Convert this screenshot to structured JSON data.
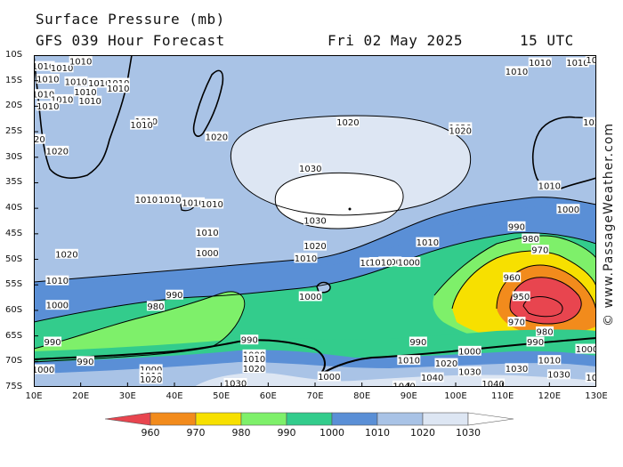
{
  "header": {
    "title": "Surface Pressure (mb)",
    "forecast": "GFS 039 Hour Forecast",
    "date": "Fri 02 May 2025",
    "time": "15 UTC"
  },
  "credit": "© www.PassageWeather.com",
  "map": {
    "lat_labels": [
      "10S",
      "15S",
      "20S",
      "25S",
      "30S",
      "35S",
      "40S",
      "45S",
      "50S",
      "55S",
      "60S",
      "65S",
      "70S",
      "75S"
    ],
    "lon_labels": [
      "10E",
      "20E",
      "30E",
      "40E",
      "50E",
      "60E",
      "70E",
      "80E",
      "90E",
      "100E",
      "110E",
      "120E",
      "130E"
    ],
    "band_colors": {
      "below_960": "#e8454f",
      "960_970": "#f28b1c",
      "970_980": "#f7e000",
      "980_990": "#7ef06a",
      "990_1000": "#33cc8c",
      "1000_1010": "#5a8fd6",
      "1010_1020": "#a9c3e6",
      "1020_1030": "#dde6f3",
      "above_1030": "#ffffff"
    },
    "contour_labels": [
      {
        "text": "1010",
        "lon": 12,
        "lat": -12.2
      },
      {
        "text": "1010",
        "lon": 16,
        "lat": -12.5
      },
      {
        "text": "1010",
        "lon": 20,
        "lat": -11.2
      },
      {
        "text": "1010",
        "lon": 13,
        "lat": -14.7
      },
      {
        "text": "1010",
        "lon": 19,
        "lat": -15.2
      },
      {
        "text": "1010",
        "lon": 24,
        "lat": -15.5
      },
      {
        "text": "1010",
        "lon": 28,
        "lat": -15.5
      },
      {
        "text": "1010",
        "lon": 21,
        "lat": -17.2
      },
      {
        "text": "1010",
        "lon": 28,
        "lat": -16.5
      },
      {
        "text": "1010",
        "lon": 12,
        "lat": -17.7
      },
      {
        "text": "1010",
        "lon": 16,
        "lat": -18.7
      },
      {
        "text": "1010",
        "lon": 22,
        "lat": -19.0
      },
      {
        "text": "1010",
        "lon": 13,
        "lat": -20.0
      },
      {
        "text": "1010",
        "lon": 34,
        "lat": -23.0
      },
      {
        "text": "1010",
        "lon": 33,
        "lat": -23.7
      },
      {
        "text": "1020",
        "lon": 10,
        "lat": -26.5
      },
      {
        "text": "1020",
        "lon": 15,
        "lat": -28.8
      },
      {
        "text": "1020",
        "lon": 49,
        "lat": -26.0
      },
      {
        "text": "1020",
        "lon": 77,
        "lat": -23.2
      },
      {
        "text": "1020",
        "lon": 101,
        "lat": -24.2
      },
      {
        "text": "1020",
        "lon": 101,
        "lat": -24.8
      },
      {
        "text": "102",
        "lon": 129,
        "lat": -23.2
      },
      {
        "text": "1030",
        "lon": 69,
        "lat": -32.2
      },
      {
        "text": "1030",
        "lon": 70,
        "lat": -42.4
      },
      {
        "text": "1020",
        "lon": 70,
        "lat": -47.4
      },
      {
        "text": "1010",
        "lon": 68,
        "lat": -49.8
      },
      {
        "text": "1010",
        "lon": 94,
        "lat": -46.7
      },
      {
        "text": "1010",
        "lon": 34,
        "lat": -38.3
      },
      {
        "text": "1010",
        "lon": 39,
        "lat": -38.3
      },
      {
        "text": "1010",
        "lon": 44,
        "lat": -38.9
      },
      {
        "text": "1010",
        "lon": 48,
        "lat": -39.2
      },
      {
        "text": "1010",
        "lon": 47,
        "lat": -44.8
      },
      {
        "text": "1020",
        "lon": 17,
        "lat": -49.0
      },
      {
        "text": "1010",
        "lon": 15,
        "lat": -54.2
      },
      {
        "text": "1000",
        "lon": 15,
        "lat": -59.0
      },
      {
        "text": "1000",
        "lon": 47,
        "lat": -48.8
      },
      {
        "text": "1000",
        "lon": 69,
        "lat": -57.3
      },
      {
        "text": "1000",
        "lon": 82,
        "lat": -50.7
      },
      {
        "text": "1000",
        "lon": 86,
        "lat": -50.5
      },
      {
        "text": "1000",
        "lon": 90,
        "lat": -50.6
      },
      {
        "text": "1010",
        "lon": 84,
        "lat": -50.6
      },
      {
        "text": "990",
        "lon": 40,
        "lat": -57.0
      },
      {
        "text": "980",
        "lon": 36,
        "lat": -59.2
      },
      {
        "text": "990",
        "lon": 14,
        "lat": -66.2
      },
      {
        "text": "990",
        "lon": 21,
        "lat": -70.0
      },
      {
        "text": "990",
        "lon": 56,
        "lat": -65.8
      },
      {
        "text": "990",
        "lon": 92,
        "lat": -66.2
      },
      {
        "text": "1000",
        "lon": 12,
        "lat": -71.6
      },
      {
        "text": "1000",
        "lon": 35,
        "lat": -71.6
      },
      {
        "text": "1010",
        "lon": 35,
        "lat": -72.8
      },
      {
        "text": "1020",
        "lon": 35,
        "lat": -73.5
      },
      {
        "text": "1000",
        "lon": 57,
        "lat": -68.7
      },
      {
        "text": "1010",
        "lon": 57,
        "lat": -69.5
      },
      {
        "text": "1020",
        "lon": 57,
        "lat": -71.4
      },
      {
        "text": "1030",
        "lon": 53,
        "lat": -74.3
      },
      {
        "text": "1000",
        "lon": 73,
        "lat": -73.0
      },
      {
        "text": "1010",
        "lon": 90,
        "lat": -69.8
      },
      {
        "text": "1020",
        "lon": 98,
        "lat": -70.4
      },
      {
        "text": "1000",
        "lon": 103,
        "lat": -68.0
      },
      {
        "text": "1030",
        "lon": 103,
        "lat": -72.0
      },
      {
        "text": "1040",
        "lon": 95,
        "lat": -73.2
      },
      {
        "text": "1040",
        "lon": 89,
        "lat": -74.8
      },
      {
        "text": "1040",
        "lon": 108,
        "lat": -74.4
      },
      {
        "text": "1030",
        "lon": 113,
        "lat": -71.4
      },
      {
        "text": "1010",
        "lon": 120,
        "lat": -69.8
      },
      {
        "text": "1030",
        "lon": 122,
        "lat": -72.6
      },
      {
        "text": "1000",
        "lon": 128,
        "lat": -67.6
      },
      {
        "text": "10",
        "lon": 129,
        "lat": -73.2
      },
      {
        "text": "990",
        "lon": 113,
        "lat": -43.6
      },
      {
        "text": "980",
        "lon": 116,
        "lat": -46.0
      },
      {
        "text": "970",
        "lon": 118,
        "lat": -48.2
      },
      {
        "text": "960",
        "lon": 112,
        "lat": -53.6
      },
      {
        "text": "950",
        "lon": 114,
        "lat": -57.3
      },
      {
        "text": "970",
        "lon": 113,
        "lat": -62.3
      },
      {
        "text": "980",
        "lon": 119,
        "lat": -64.2
      },
      {
        "text": "990",
        "lon": 117,
        "lat": -66.2
      },
      {
        "text": "1000",
        "lon": 124,
        "lat": -40.2
      },
      {
        "text": "1010",
        "lon": 120,
        "lat": -35.6
      },
      {
        "text": "1010",
        "lon": 113,
        "lat": -13.2
      },
      {
        "text": "1010",
        "lon": 118,
        "lat": -11.5
      },
      {
        "text": "1010",
        "lon": 126,
        "lat": -11.5
      },
      {
        "text": "10",
        "lon": 129,
        "lat": -11.0
      }
    ]
  },
  "legend": {
    "colors": [
      "#e8454f",
      "#f28b1c",
      "#f7e000",
      "#7ef06a",
      "#33cc8c",
      "#5a8fd6",
      "#a9c3e6",
      "#dde6f3",
      "#ffffff"
    ],
    "labels": [
      "960",
      "970",
      "980",
      "990",
      "1000",
      "1010",
      "1020",
      "1030"
    ]
  }
}
